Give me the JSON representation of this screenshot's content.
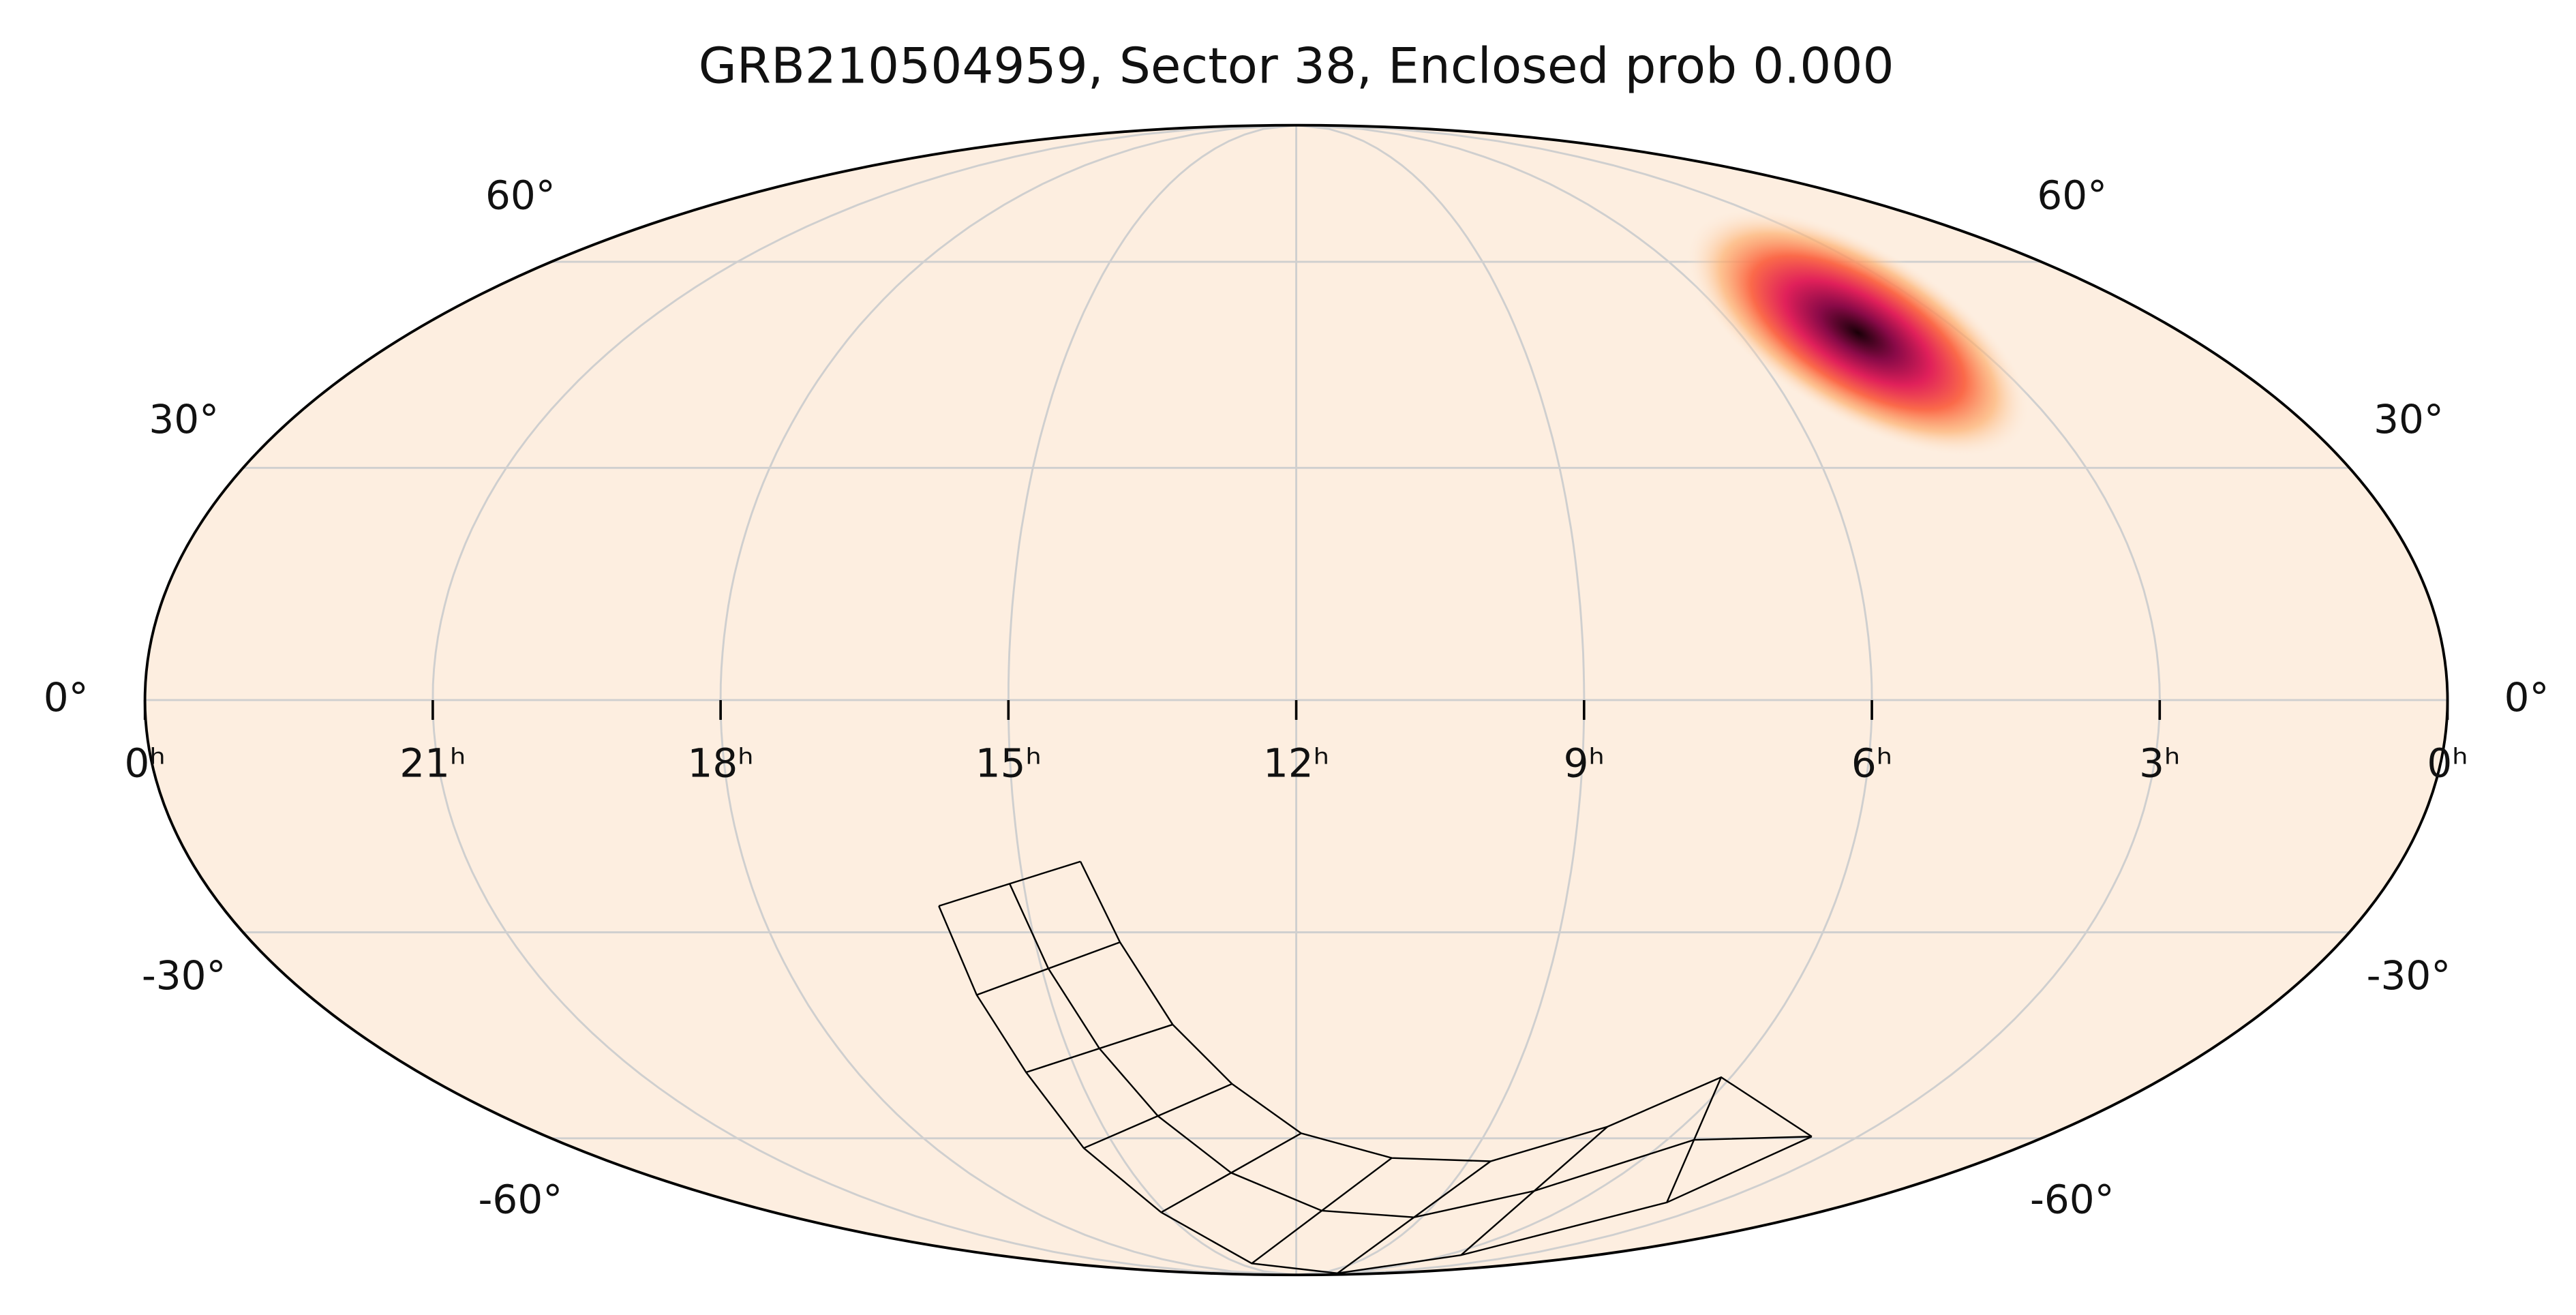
{
  "chart_data": {
    "type": "skymap",
    "title": "GRB210504959, Sector 38, Enclosed prob 0.000",
    "xticks": [
      {
        "value": 24,
        "label": "0ʰ"
      },
      {
        "value": 21,
        "label": "21ʰ"
      },
      {
        "value": 18,
        "label": "18ʰ"
      },
      {
        "value": 15,
        "label": "15ʰ"
      },
      {
        "value": 12,
        "label": "12ʰ"
      },
      {
        "value": 9,
        "label": "9ʰ"
      },
      {
        "value": 6,
        "label": "6ʰ"
      },
      {
        "value": 3,
        "label": "3ʰ"
      },
      {
        "value": 0,
        "label": "0ʰ"
      }
    ],
    "xlim": [
      24,
      0
    ],
    "yticks": [
      {
        "value": 60,
        "label": "60°"
      },
      {
        "value": 30,
        "label": "30°"
      },
      {
        "value": 0,
        "label": "0°"
      },
      {
        "value": -30,
        "label": "-30°"
      },
      {
        "value": -60,
        "label": "-60°"
      }
    ],
    "ylim": [
      -90,
      90
    ],
    "grid": true
  }
}
